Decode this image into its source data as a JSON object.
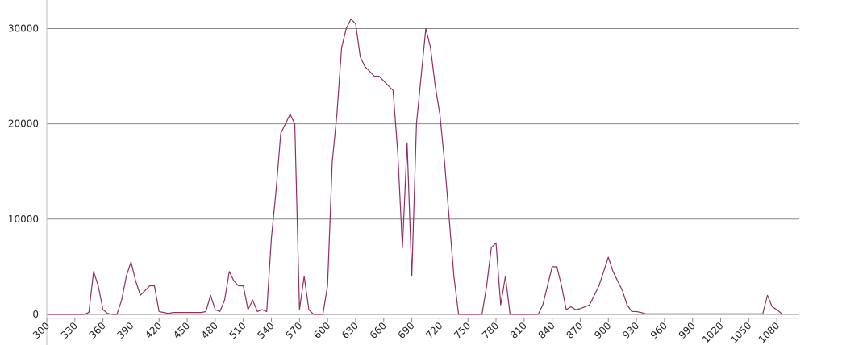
{
  "chart_data": {
    "type": "line",
    "x": [
      300,
      305,
      310,
      315,
      320,
      325,
      330,
      335,
      340,
      345,
      350,
      355,
      360,
      365,
      370,
      375,
      380,
      385,
      390,
      395,
      400,
      405,
      410,
      415,
      420,
      425,
      430,
      435,
      440,
      445,
      450,
      455,
      460,
      465,
      470,
      475,
      480,
      485,
      490,
      495,
      500,
      505,
      510,
      515,
      520,
      525,
      530,
      535,
      540,
      545,
      550,
      555,
      560,
      565,
      570,
      575,
      580,
      585,
      590,
      595,
      600,
      605,
      610,
      615,
      620,
      625,
      630,
      635,
      640,
      645,
      650,
      655,
      660,
      665,
      670,
      675,
      680,
      685,
      690,
      695,
      700,
      705,
      710,
      715,
      720,
      725,
      730,
      735,
      740,
      745,
      750,
      755,
      760,
      765,
      770,
      775,
      780,
      785,
      790,
      795,
      800,
      805,
      810,
      815,
      820,
      825,
      830,
      835,
      840,
      845,
      850,
      855,
      860,
      865,
      870,
      875,
      880,
      885,
      890,
      895,
      900,
      905,
      910,
      915,
      920,
      925,
      930,
      935,
      940,
      945,
      950,
      955,
      960,
      965,
      970,
      975,
      980,
      985,
      990,
      995,
      1000,
      1005,
      1010,
      1015,
      1020,
      1025,
      1030,
      1035,
      1040,
      1045,
      1050,
      1055,
      1060,
      1065,
      1070,
      1075,
      1080,
      1085
    ],
    "values": [
      0,
      0,
      0,
      0,
      0,
      0,
      0,
      0,
      0,
      200,
      4500,
      3000,
      500,
      100,
      0,
      0,
      1500,
      4000,
      5500,
      3500,
      2000,
      2500,
      3000,
      3000,
      300,
      200,
      100,
      200,
      200,
      200,
      200,
      200,
      200,
      200,
      300,
      2000,
      500,
      300,
      1500,
      4500,
      3500,
      3000,
      3000,
      500,
      1500,
      300,
      500,
      300,
      8000,
      13000,
      19000,
      20000,
      21000,
      20000,
      500,
      4000,
      500,
      0,
      0,
      0,
      3000,
      16000,
      21000,
      28000,
      30000,
      31000,
      30500,
      27000,
      26000,
      25500,
      25000,
      25000,
      24500,
      24000,
      23500,
      17000,
      7000,
      18000,
      4000,
      20000,
      25000,
      30000,
      28000,
      24000,
      21000,
      16000,
      10000,
      4000,
      0,
      0,
      0,
      0,
      0,
      0,
      3000,
      7000,
      7500,
      1000,
      4000,
      0,
      0,
      0,
      0,
      0,
      0,
      0,
      1000,
      3000,
      5000,
      5000,
      3000,
      500,
      800,
      500,
      600,
      800,
      1000,
      2000,
      3000,
      4500,
      6000,
      4500,
      3500,
      2500,
      1000,
      300,
      300,
      200,
      50,
      50,
      50,
      50,
      50,
      50,
      50,
      50,
      50,
      50,
      50,
      50,
      50,
      50,
      50,
      50,
      50,
      50,
      50,
      50,
      50,
      50,
      50,
      50,
      50,
      50,
      2000,
      800,
      500,
      100
    ],
    "color": "#8e2f63",
    "xlim": [
      300,
      1104
    ],
    "ylim": [
      -400,
      33000
    ],
    "xticks": [
      300,
      330,
      360,
      390,
      420,
      450,
      480,
      510,
      540,
      570,
      600,
      630,
      660,
      690,
      720,
      750,
      780,
      810,
      840,
      870,
      900,
      930,
      960,
      990,
      1020,
      1050,
      1080
    ],
    "yticks": [
      0,
      10000,
      20000,
      30000
    ],
    "grid": true
  }
}
